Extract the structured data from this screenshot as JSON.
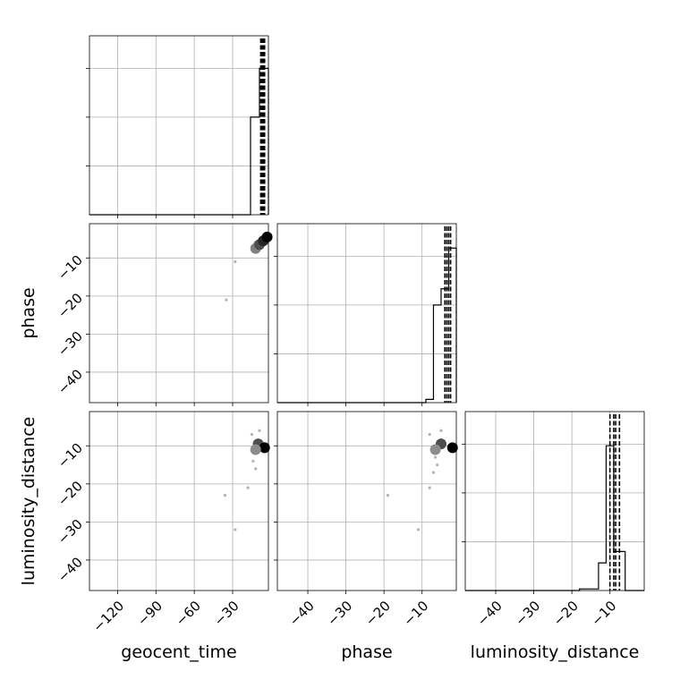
{
  "chart_data": {
    "type": "corner",
    "parameters": [
      "geocent_time",
      "phase",
      "luminosity_distance"
    ],
    "axis_labels": {
      "x": [
        "geocent_time",
        "phase",
        "luminosity_distance"
      ],
      "y": [
        "",
        "phase",
        "luminosity_distance"
      ]
    },
    "grid": true,
    "ranges": {
      "geocent_time": [
        -142,
        -2
      ],
      "phase": [
        -48,
        -1
      ],
      "luminosity_distance": [
        -48,
        -1
      ]
    },
    "ticks": {
      "geocent_time": [
        -120,
        -90,
        -60,
        -30
      ],
      "phase": [
        -40,
        -30,
        -20,
        -10
      ],
      "luminosity_distance": [
        -40,
        -30,
        -20,
        -10
      ]
    },
    "tick_labels": {
      "geocent_time": [
        "−120",
        "−90",
        "−60",
        "−30"
      ],
      "phase": [
        "−40",
        "−30",
        "−20",
        "−10"
      ],
      "luminosity_distance": [
        "−40",
        "−30",
        "−20",
        "−10"
      ]
    },
    "histograms": {
      "geocent_time": {
        "bin_edges": [
          -16,
          -9,
          -2
        ],
        "counts": [
          0.6,
          0.9
        ],
        "quantiles": [
          -8,
          -7,
          -6,
          -5
        ]
      },
      "phase": {
        "bin_edges": [
          -9,
          -7,
          -5,
          -3,
          -1
        ],
        "counts": [
          0.02,
          0.6,
          0.7,
          0.95
        ],
        "quantiles": [
          -4,
          -3.5,
          -3,
          -2.5
        ]
      },
      "luminosity_distance": {
        "bin_edges": [
          -18,
          -13,
          -11,
          -9,
          -6,
          -3
        ],
        "counts": [
          0.01,
          0.17,
          0.89,
          0.24,
          0
        ],
        "quantiles": [
          -10,
          -9,
          -8.5,
          -7.5
        ]
      }
    },
    "scatter": [
      {
        "x_param": "geocent_time",
        "y_param": "phase",
        "points": [
          [
            -28,
            -11
          ],
          [
            -35,
            -21
          ],
          [
            -12,
            -7
          ],
          [
            -10,
            -6.5
          ],
          [
            -8,
            -6
          ],
          [
            -6,
            -5.5
          ],
          [
            -4,
            -5
          ],
          [
            -12.5,
            -6
          ]
        ],
        "dense": [
          [
            -12,
            -7.5,
            0.5
          ],
          [
            -9,
            -6.5,
            0.7
          ],
          [
            -6,
            -5.5,
            0.85
          ],
          [
            -3,
            -4.5,
            1
          ]
        ]
      },
      {
        "x_param": "geocent_time",
        "y_param": "luminosity_distance",
        "points": [
          [
            -36,
            -23
          ],
          [
            -28,
            -32
          ],
          [
            -18,
            -21
          ],
          [
            -14,
            -14
          ],
          [
            -15,
            -7
          ],
          [
            -9,
            -6
          ],
          [
            -12,
            -16
          ],
          [
            -13,
            -12
          ]
        ],
        "dense": [
          [
            -10,
            -9.5,
            0.7
          ],
          [
            -5,
            -10.5,
            1
          ],
          [
            -12,
            -11,
            0.45
          ]
        ]
      },
      {
        "x_param": "phase",
        "y_param": "luminosity_distance",
        "points": [
          [
            -19,
            -23
          ],
          [
            -11,
            -32
          ],
          [
            -8,
            -21
          ],
          [
            -6,
            -15
          ],
          [
            -8,
            -7
          ],
          [
            -5,
            -6
          ],
          [
            -7,
            -17
          ],
          [
            -6.5,
            -13
          ]
        ],
        "dense": [
          [
            -5,
            -9.5,
            0.7
          ],
          [
            -2,
            -10.5,
            1
          ],
          [
            -6.5,
            -11,
            0.45
          ]
        ]
      }
    ]
  }
}
